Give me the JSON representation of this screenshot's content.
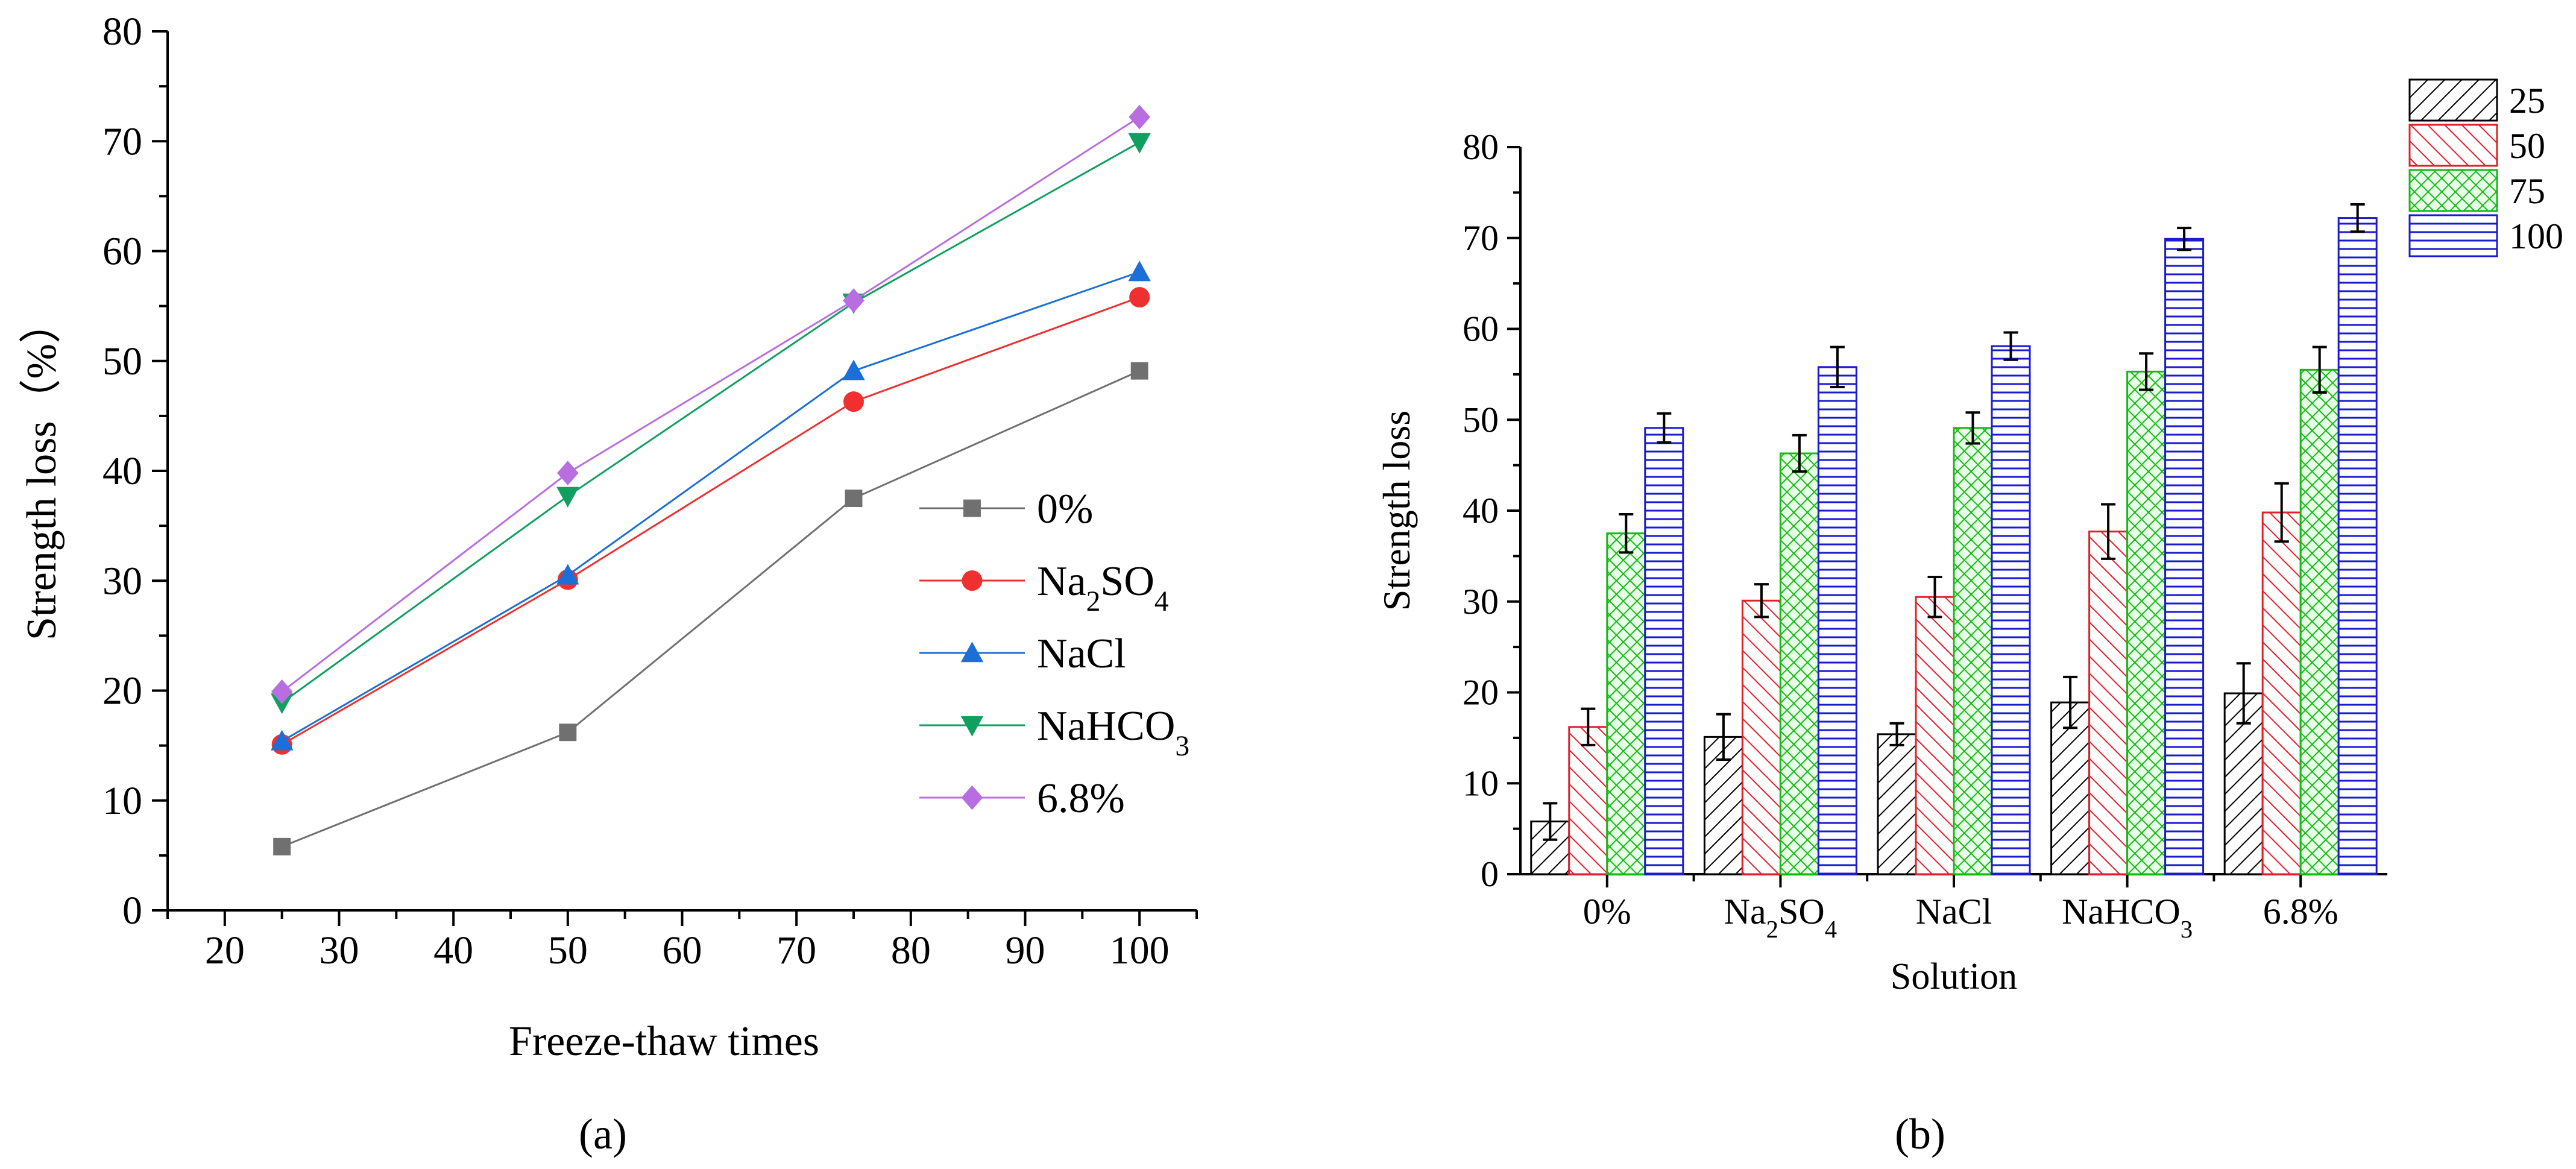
{
  "chart_data": [
    {
      "type": "line",
      "panel_label": "(a)",
      "xlabel": "Freeze-thaw times",
      "ylabel": "Strength loss（%）",
      "xlim": [
        15,
        105
      ],
      "ylim": [
        0,
        80
      ],
      "xticks": [
        20,
        30,
        40,
        50,
        60,
        70,
        80,
        90,
        100
      ],
      "yticks": [
        0,
        10,
        20,
        30,
        40,
        50,
        60,
        70,
        80
      ],
      "x": [
        25,
        50,
        75,
        100
      ],
      "series": [
        {
          "name": "0%",
          "legend": {
            "main": "0%",
            "sub1": "",
            "mid": "",
            "sub2": ""
          },
          "marker": "square",
          "color": "#707070",
          "values": [
            5.8,
            16.2,
            37.5,
            49.1
          ]
        },
        {
          "name": "Na2SO4",
          "legend": {
            "main": "Na",
            "sub1": "2",
            "mid": "SO",
            "sub2": "4"
          },
          "marker": "circle",
          "color": "#f03030",
          "values": [
            15.1,
            30.1,
            46.3,
            55.8
          ]
        },
        {
          "name": "NaCl",
          "legend": {
            "main": "NaCl",
            "sub1": "",
            "mid": "",
            "sub2": ""
          },
          "marker": "triangle-up",
          "color": "#1a6fd8",
          "values": [
            15.4,
            30.5,
            49.1,
            58.1
          ]
        },
        {
          "name": "NaHCO3",
          "legend": {
            "main": "NaHCO",
            "sub1": "3",
            "mid": "",
            "sub2": ""
          },
          "marker": "triangle-down",
          "color": "#0fa060",
          "values": [
            18.9,
            37.7,
            55.3,
            69.9
          ]
        },
        {
          "name": "6.8%",
          "legend": {
            "main": "6.8%",
            "sub1": "",
            "mid": "",
            "sub2": ""
          },
          "marker": "diamond",
          "color": "#b86ee0",
          "values": [
            19.9,
            39.8,
            55.5,
            72.2
          ]
        }
      ],
      "legend_position": "center-right"
    },
    {
      "type": "bar",
      "panel_label": "(b)",
      "xlabel": "Solution",
      "ylabel": "Strength loss",
      "ylim": [
        0,
        80
      ],
      "yticks": [
        0,
        10,
        20,
        30,
        40,
        50,
        60,
        70,
        80
      ],
      "categories": [
        "0%",
        "Na2SO4",
        "NaCl",
        "NaHCO3",
        "6.8%"
      ],
      "category_labels": [
        {
          "main": "0%",
          "sub1": "",
          "mid": "",
          "sub2": ""
        },
        {
          "main": "Na",
          "sub1": "2",
          "mid": "SO",
          "sub2": "4"
        },
        {
          "main": "NaCl",
          "sub1": "",
          "mid": "",
          "sub2": ""
        },
        {
          "main": "NaHCO",
          "sub1": "3",
          "mid": "",
          "sub2": ""
        },
        {
          "main": "6.8%",
          "sub1": "",
          "mid": "",
          "sub2": ""
        }
      ],
      "series": [
        {
          "name": "25",
          "pattern": "diag-black",
          "color": "#000000",
          "values": [
            5.8,
            15.1,
            15.4,
            18.9,
            19.9
          ],
          "errors": [
            2.0,
            2.5,
            1.2,
            2.8,
            3.3
          ]
        },
        {
          "name": "50",
          "pattern": "diag-red",
          "color": "#e0202a",
          "values": [
            16.2,
            30.1,
            30.5,
            37.7,
            39.8
          ],
          "errors": [
            2.0,
            1.8,
            2.2,
            3.0,
            3.2
          ]
        },
        {
          "name": "75",
          "pattern": "cross-green",
          "color": "#18b818",
          "values": [
            37.5,
            46.3,
            49.1,
            55.3,
            55.5
          ],
          "errors": [
            2.1,
            2.0,
            1.7,
            2.0,
            2.5
          ]
        },
        {
          "name": "100",
          "pattern": "horiz-blue",
          "color": "#1a1ad0",
          "values": [
            49.1,
            55.8,
            58.1,
            69.9,
            72.2
          ],
          "errors": [
            1.6,
            2.2,
            1.5,
            1.2,
            1.5
          ]
        }
      ],
      "legend_position": "top-right"
    }
  ]
}
